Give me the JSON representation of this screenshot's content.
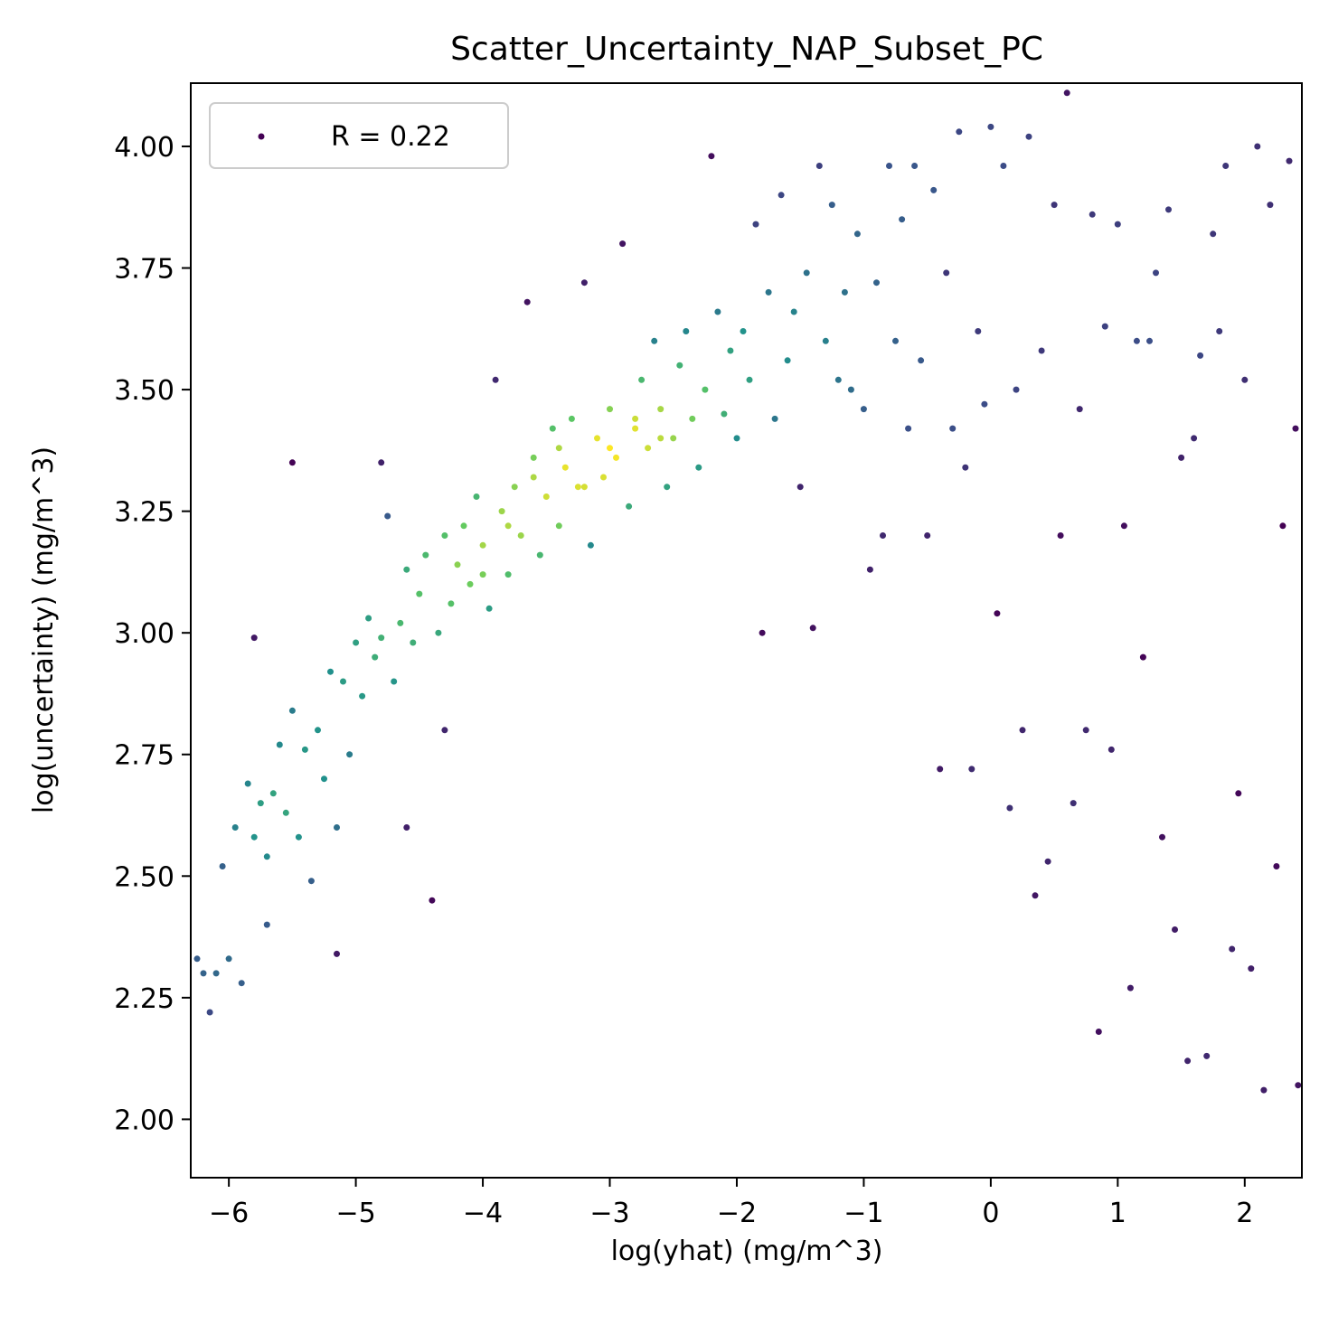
{
  "chart_data": {
    "type": "scatter",
    "title": "Scatter_Uncertainty_NAP_Subset_PC",
    "xlabel": "log(yhat) (mg/m^3)",
    "ylabel": "log(uncertainty) (mg/m^3)",
    "xlim": [
      -6.3,
      2.45
    ],
    "ylim": [
      1.88,
      4.13
    ],
    "xticks": [
      -6,
      -5,
      -4,
      -3,
      -2,
      -1,
      0,
      1,
      2
    ],
    "xtick_labels": [
      "−6",
      "−5",
      "−4",
      "−3",
      "−2",
      "−1",
      "0",
      "1",
      "2"
    ],
    "yticks": [
      2.0,
      2.25,
      2.5,
      2.75,
      3.0,
      3.25,
      3.5,
      3.75,
      4.0
    ],
    "ytick_labels": [
      "2.00",
      "2.25",
      "2.50",
      "2.75",
      "3.00",
      "3.25",
      "3.50",
      "3.75",
      "4.00"
    ],
    "grid": false,
    "colormap": "viridis (point density)",
    "legend": {
      "location": "upper-left",
      "label": "R = 0.22",
      "marker_color": "#440154"
    },
    "series": [
      {
        "name": "R = 0.22",
        "points": [
          [
            -6.25,
            2.33
          ],
          [
            -6.2,
            2.3
          ],
          [
            -6.15,
            2.22
          ],
          [
            -6.1,
            2.3
          ],
          [
            -6.05,
            2.52
          ],
          [
            -6.0,
            2.33
          ],
          [
            -5.95,
            2.6
          ],
          [
            -5.9,
            2.28
          ],
          [
            -5.85,
            2.69
          ],
          [
            -5.8,
            2.58
          ],
          [
            -5.8,
            2.99
          ],
          [
            -5.75,
            2.65
          ],
          [
            -5.7,
            2.4
          ],
          [
            -5.7,
            2.54
          ],
          [
            -5.65,
            2.67
          ],
          [
            -5.6,
            2.77
          ],
          [
            -5.55,
            2.63
          ],
          [
            -5.5,
            2.84
          ],
          [
            -5.5,
            3.35
          ],
          [
            -5.45,
            2.58
          ],
          [
            -5.4,
            2.76
          ],
          [
            -5.35,
            2.49
          ],
          [
            -5.3,
            2.8
          ],
          [
            -5.25,
            2.7
          ],
          [
            -5.2,
            2.92
          ],
          [
            -5.15,
            2.34
          ],
          [
            -5.15,
            2.6
          ],
          [
            -5.1,
            2.9
          ],
          [
            -5.05,
            2.75
          ],
          [
            -5.0,
            2.98
          ],
          [
            -4.95,
            2.87
          ],
          [
            -4.9,
            3.03
          ],
          [
            -4.85,
            2.95
          ],
          [
            -4.8,
            3.35
          ],
          [
            -4.8,
            2.99
          ],
          [
            -4.75,
            3.24
          ],
          [
            -4.7,
            2.9
          ],
          [
            -4.65,
            3.02
          ],
          [
            -4.6,
            3.13
          ],
          [
            -4.6,
            2.6
          ],
          [
            -4.55,
            2.98
          ],
          [
            -4.5,
            3.08
          ],
          [
            -4.45,
            3.16
          ],
          [
            -4.4,
            2.45
          ],
          [
            -4.35,
            3.0
          ],
          [
            -4.3,
            3.2
          ],
          [
            -4.3,
            2.8
          ],
          [
            -4.25,
            3.06
          ],
          [
            -4.2,
            3.14
          ],
          [
            -4.15,
            3.22
          ],
          [
            -4.1,
            3.1
          ],
          [
            -4.05,
            3.28
          ],
          [
            -4.0,
            3.18
          ],
          [
            -3.95,
            3.05
          ],
          [
            -3.9,
            3.52
          ],
          [
            -3.85,
            3.25
          ],
          [
            -3.8,
            3.12
          ],
          [
            -3.75,
            3.3
          ],
          [
            -3.7,
            3.2
          ],
          [
            -3.65,
            3.68
          ],
          [
            -3.6,
            3.36
          ],
          [
            -3.55,
            3.16
          ],
          [
            -3.5,
            3.28
          ],
          [
            -3.45,
            3.42
          ],
          [
            -3.4,
            3.22
          ],
          [
            -3.35,
            3.34
          ],
          [
            -3.3,
            3.44
          ],
          [
            -3.25,
            3.3
          ],
          [
            -3.2,
            3.72
          ],
          [
            -3.15,
            3.18
          ],
          [
            -3.1,
            3.4
          ],
          [
            -3.05,
            3.32
          ],
          [
            -3.0,
            3.46
          ],
          [
            -2.95,
            3.36
          ],
          [
            -2.9,
            3.8
          ],
          [
            -2.85,
            3.26
          ],
          [
            -2.8,
            3.42
          ],
          [
            -2.75,
            3.52
          ],
          [
            -2.7,
            3.38
          ],
          [
            -2.65,
            3.6
          ],
          [
            -2.6,
            3.46
          ],
          [
            -2.55,
            3.3
          ],
          [
            -2.5,
            3.4
          ],
          [
            -2.45,
            3.55
          ],
          [
            -2.4,
            3.62
          ],
          [
            -2.35,
            3.44
          ],
          [
            -2.3,
            3.34
          ],
          [
            -2.25,
            3.5
          ],
          [
            -2.2,
            3.98
          ],
          [
            -2.15,
            3.66
          ],
          [
            -2.1,
            3.45
          ],
          [
            -2.05,
            3.58
          ],
          [
            -2.0,
            3.4
          ],
          [
            -1.95,
            3.62
          ],
          [
            -1.9,
            3.52
          ],
          [
            -1.85,
            3.84
          ],
          [
            -1.8,
            3.0
          ],
          [
            -1.75,
            3.7
          ],
          [
            -1.7,
            3.44
          ],
          [
            -1.65,
            3.9
          ],
          [
            -1.6,
            3.56
          ],
          [
            -1.55,
            3.66
          ],
          [
            -1.5,
            3.3
          ],
          [
            -1.45,
            3.74
          ],
          [
            -1.4,
            3.01
          ],
          [
            -1.35,
            3.96
          ],
          [
            -1.3,
            3.6
          ],
          [
            -1.25,
            3.88
          ],
          [
            -1.2,
            3.52
          ],
          [
            -1.15,
            3.7
          ],
          [
            -1.1,
            3.5
          ],
          [
            -1.05,
            3.82
          ],
          [
            -1.0,
            3.46
          ],
          [
            -0.95,
            3.13
          ],
          [
            -0.9,
            3.72
          ],
          [
            -0.85,
            3.2
          ],
          [
            -0.8,
            3.96
          ],
          [
            -0.75,
            3.6
          ],
          [
            -0.7,
            3.85
          ],
          [
            -0.65,
            3.42
          ],
          [
            -0.6,
            3.96
          ],
          [
            -0.55,
            3.56
          ],
          [
            -0.5,
            3.2
          ],
          [
            -0.45,
            3.91
          ],
          [
            -0.4,
            2.72
          ],
          [
            -0.35,
            3.74
          ],
          [
            -0.3,
            3.42
          ],
          [
            -0.25,
            4.03
          ],
          [
            -0.2,
            3.34
          ],
          [
            -0.15,
            2.72
          ],
          [
            -0.1,
            3.62
          ],
          [
            -0.05,
            3.47
          ],
          [
            0.0,
            4.04
          ],
          [
            0.05,
            3.04
          ],
          [
            0.1,
            3.96
          ],
          [
            0.15,
            2.64
          ],
          [
            0.2,
            3.5
          ],
          [
            0.25,
            2.8
          ],
          [
            0.3,
            4.02
          ],
          [
            0.35,
            2.46
          ],
          [
            0.4,
            3.58
          ],
          [
            0.45,
            2.53
          ],
          [
            0.5,
            3.88
          ],
          [
            0.55,
            3.2
          ],
          [
            0.6,
            4.11
          ],
          [
            0.65,
            2.65
          ],
          [
            0.7,
            3.46
          ],
          [
            0.75,
            2.8
          ],
          [
            0.8,
            3.86
          ],
          [
            0.85,
            2.18
          ],
          [
            0.9,
            3.63
          ],
          [
            0.95,
            2.76
          ],
          [
            1.0,
            3.84
          ],
          [
            1.05,
            3.22
          ],
          [
            1.1,
            2.27
          ],
          [
            1.15,
            3.6
          ],
          [
            1.2,
            2.95
          ],
          [
            1.25,
            3.6
          ],
          [
            1.3,
            3.74
          ],
          [
            1.35,
            2.58
          ],
          [
            1.4,
            3.87
          ],
          [
            1.45,
            2.39
          ],
          [
            1.5,
            3.36
          ],
          [
            1.55,
            2.12
          ],
          [
            1.6,
            3.4
          ],
          [
            1.65,
            3.57
          ],
          [
            1.7,
            2.13
          ],
          [
            1.75,
            3.82
          ],
          [
            1.8,
            3.62
          ],
          [
            1.85,
            3.96
          ],
          [
            1.9,
            2.35
          ],
          [
            1.95,
            2.67
          ],
          [
            2.0,
            3.52
          ],
          [
            2.05,
            2.31
          ],
          [
            2.1,
            4.0
          ],
          [
            2.15,
            2.06
          ],
          [
            2.2,
            3.88
          ],
          [
            2.25,
            2.52
          ],
          [
            2.3,
            3.22
          ],
          [
            2.35,
            3.97
          ],
          [
            2.4,
            3.42
          ],
          [
            2.42,
            2.07
          ],
          [
            -4.0,
            3.12
          ],
          [
            -3.8,
            3.22
          ],
          [
            -3.6,
            3.32
          ],
          [
            -3.4,
            3.38
          ],
          [
            -3.2,
            3.3
          ],
          [
            -3.0,
            3.38
          ],
          [
            -2.8,
            3.44
          ],
          [
            -2.6,
            3.4
          ]
        ]
      }
    ]
  }
}
